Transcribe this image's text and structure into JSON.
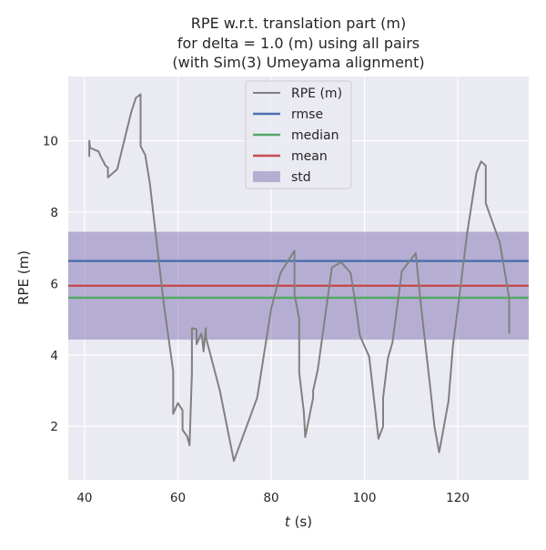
{
  "chart_data": {
    "type": "line",
    "title_lines": [
      "RPE w.r.t. translation part (m)",
      "for delta = 1.0 (m) using all pairs",
      "(with Sim(3) Umeyama alignment)"
    ],
    "xlabel_var": "t",
    "xlabel_unit": " (s)",
    "ylabel": "RPE (m)",
    "xlim": [
      36.5,
      135.2
    ],
    "ylim": [
      0.5,
      11.8
    ],
    "xticks": [
      40,
      60,
      80,
      100,
      120
    ],
    "yticks": [
      2,
      4,
      6,
      8,
      10
    ],
    "grid": true,
    "legend_position": "top-center",
    "colors": {
      "background": "#EAEAF2",
      "grid": "#FFFFFF",
      "rpe": "#808080",
      "rmse": "#4C72B0",
      "median": "#55A868",
      "mean": "#C44E52",
      "std": "#8172B2"
    },
    "legend": [
      {
        "label": "RPE (m)",
        "kind": "line",
        "color_key": "rpe"
      },
      {
        "label": "rmse",
        "kind": "line",
        "color_key": "rmse"
      },
      {
        "label": "median",
        "kind": "line",
        "color_key": "median"
      },
      {
        "label": "mean",
        "kind": "line",
        "color_key": "mean"
      },
      {
        "label": "std",
        "kind": "patch",
        "color_key": "std"
      }
    ],
    "stats": {
      "rmse": 6.63,
      "median": 5.6,
      "mean": 5.94,
      "std_band": [
        4.43,
        7.45
      ]
    },
    "series": [
      {
        "name": "RPE (m)",
        "x": [
          41,
          41,
          41.2,
          43,
          43.5,
          44.5,
          45,
          45,
          47,
          50,
          51,
          52,
          52,
          53,
          54,
          57,
          59,
          59,
          60,
          61,
          61,
          62,
          62.5,
          63,
          63,
          64,
          64,
          65,
          65.2,
          65.5,
          66,
          66,
          69,
          72,
          77,
          80,
          82,
          85,
          85,
          86,
          86,
          87,
          87.3,
          89,
          89,
          90,
          93,
          95,
          97,
          98,
          99,
          100,
          101,
          103,
          104,
          104,
          105,
          106,
          108,
          111,
          112,
          114,
          115,
          116,
          118,
          119,
          120,
          122,
          124,
          125,
          126,
          126,
          129,
          131,
          131
        ],
        "y": [
          9.55,
          10.0,
          9.8,
          9.7,
          9.55,
          9.3,
          9.25,
          8.97,
          9.2,
          10.8,
          11.2,
          11.3,
          9.85,
          9.6,
          8.8,
          5.4,
          3.55,
          2.35,
          2.65,
          2.45,
          1.9,
          1.72,
          1.47,
          3.5,
          4.75,
          4.72,
          4.3,
          4.6,
          4.5,
          4.1,
          4.75,
          4.5,
          3.0,
          1.03,
          2.8,
          5.3,
          6.3,
          6.92,
          5.7,
          5.0,
          3.5,
          2.4,
          1.7,
          2.8,
          3.0,
          3.6,
          6.45,
          6.6,
          6.3,
          5.5,
          4.55,
          4.25,
          3.95,
          1.65,
          2.0,
          2.8,
          3.9,
          4.35,
          6.35,
          6.85,
          5.5,
          3.2,
          2.0,
          1.27,
          2.7,
          4.3,
          5.3,
          7.4,
          9.1,
          9.42,
          9.3,
          8.25,
          7.15,
          5.6,
          4.6
        ]
      }
    ]
  }
}
